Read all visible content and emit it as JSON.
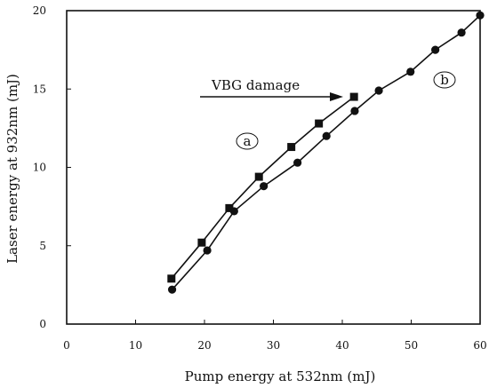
{
  "chart_data": {
    "type": "line",
    "xlabel": "Pump energy at 532nm (mJ)",
    "ylabel": "Laser energy at 932nm (mJ)",
    "xlim": [
      0,
      60
    ],
    "ylim": [
      0,
      20
    ],
    "xticks": [
      "0",
      "10",
      "20",
      "30",
      "40",
      "50",
      "60"
    ],
    "yticks": [
      "0",
      "5",
      "10",
      "15",
      "20"
    ],
    "grid": false,
    "legend": "none",
    "series": [
      {
        "marker": "square",
        "x": [
          15.2,
          19.6,
          23.6,
          27.9,
          32.6,
          36.6,
          41.7
        ],
        "y": [
          2.9,
          5.2,
          7.4,
          9.4,
          11.3,
          12.8,
          14.5
        ]
      },
      {
        "marker": "circle",
        "x": [
          15.3,
          20.4,
          24.3,
          28.6,
          33.5,
          37.7,
          41.8,
          45.3,
          49.9,
          53.5,
          57.3,
          60.0
        ],
        "y": [
          2.2,
          4.7,
          7.2,
          8.8,
          10.3,
          12.0,
          13.6,
          14.9,
          16.1,
          17.5,
          18.6,
          19.7
        ]
      }
    ],
    "annotations": {
      "a_label": "a",
      "b_label": "b",
      "damage_text": "VBG damage"
    }
  }
}
